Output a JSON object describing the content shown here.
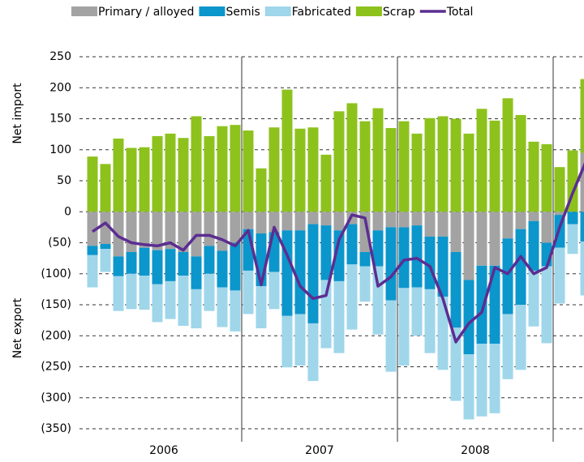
{
  "chart_data": {
    "type": "stacked_bar_line",
    "y_label_top": "Net import",
    "y_label_bottom": "Net export",
    "categories": [
      null,
      null,
      null,
      null,
      null,
      null,
      null,
      null,
      null,
      null,
      null,
      null,
      null,
      null,
      null,
      null,
      null,
      null,
      null,
      null,
      null,
      null,
      null,
      null,
      null,
      null,
      null,
      null,
      null,
      null,
      null,
      null,
      null,
      null,
      null,
      null,
      null,
      null,
      null
    ],
    "year_labels": [
      "2006",
      "2007",
      "2008"
    ],
    "series": [
      {
        "name": "Primary / alloyed",
        "color": "#a3a3a3",
        "values": [
          -55,
          -52,
          -72,
          -65,
          -58,
          -62,
          -60,
          -65,
          -72,
          -55,
          -63,
          -50,
          -28,
          -35,
          -33,
          -30,
          -30,
          -20,
          -22,
          -30,
          -20,
          -65,
          -30,
          -25,
          -25,
          -22,
          -40,
          -40,
          -65,
          -110,
          -87,
          -87,
          -43,
          -28,
          -15,
          -50,
          -5,
          0,
          95
        ]
      },
      {
        "name": "Semis",
        "color": "#0b96cc",
        "values": [
          -15,
          -8,
          -32,
          -35,
          -45,
          -55,
          -52,
          -38,
          -53,
          -45,
          -59,
          -77,
          -67,
          -85,
          -64,
          -138,
          -135,
          -160,
          -88,
          -82,
          -65,
          -23,
          -58,
          -118,
          -98,
          -100,
          -85,
          -97,
          -122,
          -120,
          -126,
          -126,
          -122,
          -122,
          -80,
          -38,
          -53,
          -20,
          -48
        ]
      },
      {
        "name": "Fabricated",
        "color": "#9fd6ea",
        "values": [
          -52,
          -37,
          -56,
          -57,
          -55,
          -61,
          -61,
          -81,
          -63,
          -60,
          -64,
          -66,
          -70,
          -68,
          -60,
          -83,
          -83,
          -93,
          -110,
          -116,
          -105,
          -57,
          -110,
          -115,
          -125,
          -78,
          -103,
          -118,
          -118,
          -105,
          -117,
          -112,
          -105,
          -105,
          -90,
          -124,
          -90,
          -48,
          -87
        ]
      },
      {
        "name": "Scrap",
        "color": "#8dc21c",
        "values": [
          89,
          77,
          118,
          103,
          104,
          122,
          126,
          119,
          154,
          122,
          138,
          140,
          131,
          70,
          136,
          197,
          134,
          136,
          92,
          162,
          175,
          146,
          167,
          135,
          146,
          126,
          151,
          154,
          150,
          126,
          166,
          147,
          183,
          156,
          113,
          109,
          72,
          99,
          119
        ]
      }
    ],
    "line": {
      "name": "Total",
      "color": "#5c2d91",
      "values": [
        -32,
        -18,
        -40,
        -50,
        -53,
        -55,
        -50,
        -62,
        -38,
        -38,
        -45,
        -55,
        -30,
        -118,
        -25,
        -70,
        -120,
        -140,
        -135,
        -45,
        -5,
        -10,
        -120,
        -105,
        -78,
        -75,
        -88,
        -140,
        -210,
        -180,
        -162,
        -90,
        -100,
        -72,
        -100,
        -90,
        -25,
        30,
        80
      ]
    },
    "ylim": [
      -350,
      250
    ],
    "yticks": [
      {
        "value": -350,
        "label": "(350)"
      },
      {
        "value": -300,
        "label": "(300)"
      },
      {
        "value": -250,
        "label": "(250)"
      },
      {
        "value": -200,
        "label": "(200)"
      },
      {
        "value": -150,
        "label": "(150)"
      },
      {
        "value": -100,
        "label": "(100)"
      },
      {
        "value": -50,
        "label": "(50)"
      },
      0,
      50,
      100,
      150,
      200,
      250
    ],
    "grid": true
  }
}
